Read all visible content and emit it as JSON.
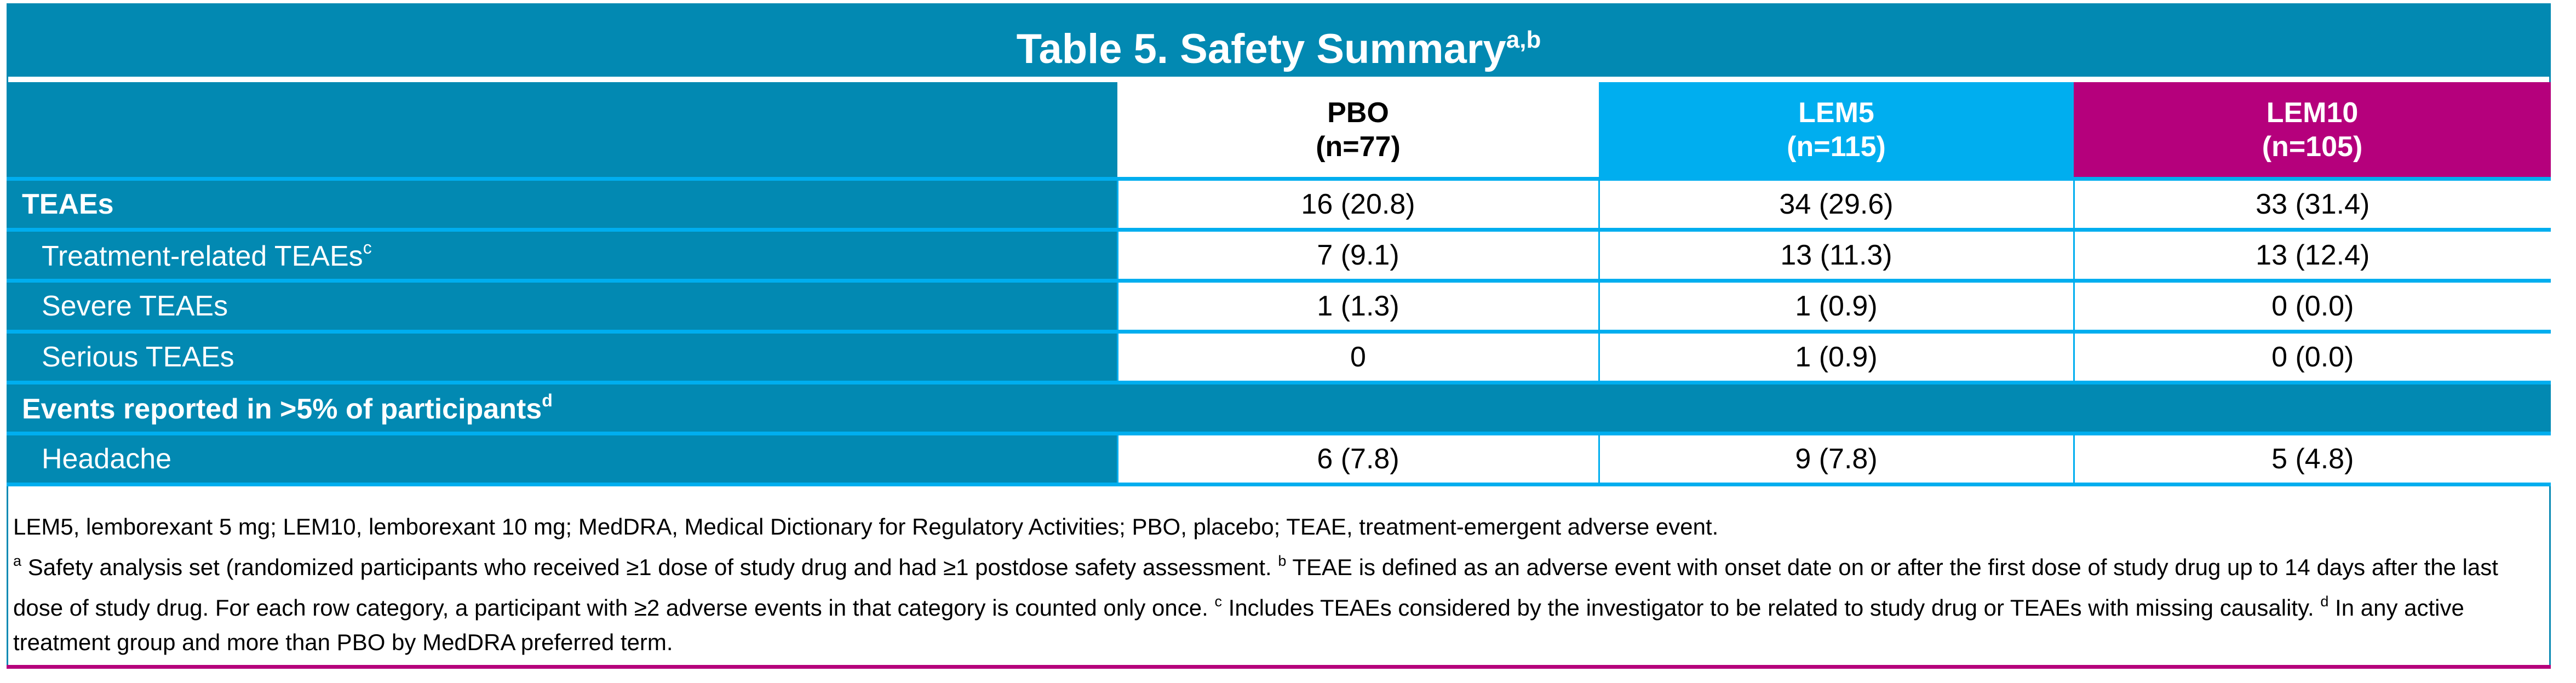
{
  "title": {
    "text": "Table 5. Safety Summary",
    "sup": "a,b"
  },
  "colors": {
    "teal": "#0289b2",
    "cyan": "#00aeef",
    "magenta": "#b5007c"
  },
  "columns": [
    {
      "name": "PBO",
      "n": "(n=77)"
    },
    {
      "name": "LEM5",
      "n": "(n=115)"
    },
    {
      "name": "LEM10",
      "n": "(n=105)"
    }
  ],
  "rows": [
    {
      "label": "TEAEs",
      "sup": "",
      "values": [
        "16 (20.8)",
        "34 (29.6)",
        "33 (31.4)"
      ]
    },
    {
      "label": "Treatment-related TEAEs",
      "sup": "c",
      "values": [
        "7 (9.1)",
        "13 (11.3)",
        "13 (12.4)"
      ]
    },
    {
      "label": "Severe TEAEs",
      "sup": "",
      "values": [
        "1 (1.3)",
        "1 (0.9)",
        "0 (0.0)"
      ]
    },
    {
      "label": "Serious TEAEs",
      "sup": "",
      "values": [
        "0",
        "1 (0.9)",
        "0 (0.0)"
      ]
    }
  ],
  "section": {
    "label": "Events reported in >5% of participants",
    "sup": "d"
  },
  "section_rows": [
    {
      "label": "Headache",
      "values": [
        "6 (7.8)",
        "9 (7.8)",
        "5 (4.8)"
      ]
    }
  ],
  "footnotes": {
    "abbrev": "LEM5, lemborexant 5 mg; LEM10, lemborexant 10 mg; MedDRA, Medical Dictionary for Regulatory Activities; PBO, placebo; TEAE, treatment-emergent adverse event.",
    "a_mark": "a",
    "a": " Safety analysis set (randomized participants who received ≥1 dose of study drug and had ≥1 postdose safety assessment. ",
    "b_mark": "b",
    "b": " TEAE is defined as an adverse event with onset date on or after the first dose of study drug up to 14 days after the last dose of study drug. For each row category, a participant with ≥2 adverse events in that category is counted only once. ",
    "c_mark": "c",
    "c": " Includes TEAEs considered by the investigator to be related to study drug or TEAEs with missing causality. ",
    "d_mark": "d",
    "d": " In any active treatment group and more than PBO by MedDRA preferred term."
  }
}
